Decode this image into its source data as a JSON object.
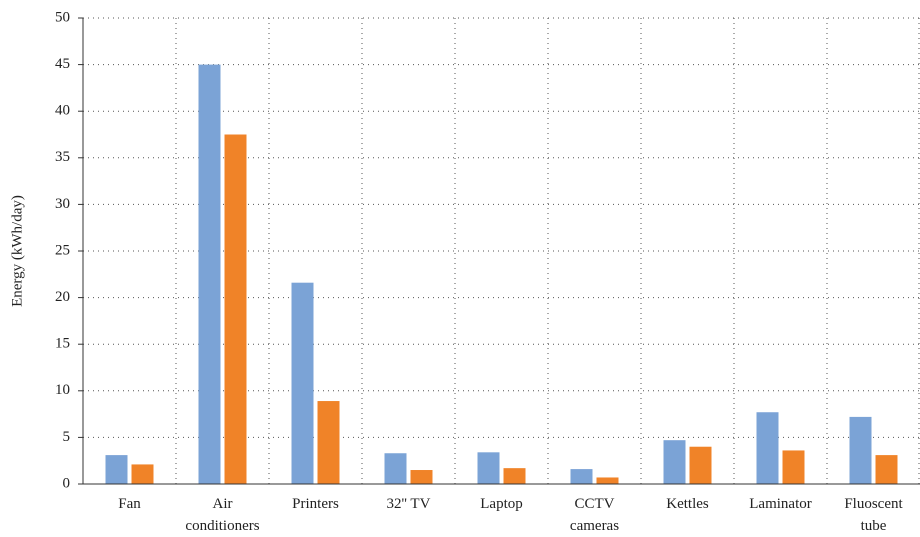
{
  "chart_data": {
    "type": "bar",
    "y_label": "Energy (kWh/day)",
    "categories": [
      [
        "Fan"
      ],
      [
        "Air",
        "conditioners"
      ],
      [
        "Printers"
      ],
      [
        "32'' TV"
      ],
      [
        "Laptop"
      ],
      [
        "CCTV",
        "cameras"
      ],
      [
        "Kettles"
      ],
      [
        "Laminator"
      ],
      [
        "Fluoscent",
        "tube"
      ]
    ],
    "series": [
      {
        "color": "#7ba3d6",
        "values": [
          3.1,
          45,
          21.6,
          3.3,
          3.4,
          1.6,
          4.7,
          7.7,
          7.2
        ]
      },
      {
        "color": "#f08328",
        "values": [
          2.1,
          37.5,
          8.9,
          1.5,
          1.7,
          0.7,
          4.0,
          3.6,
          3.1
        ]
      }
    ],
    "ylim": [
      0,
      50
    ],
    "yticks": [
      0,
      5,
      10,
      15,
      20,
      25,
      30,
      35,
      40,
      45,
      50
    ],
    "grid": true
  }
}
